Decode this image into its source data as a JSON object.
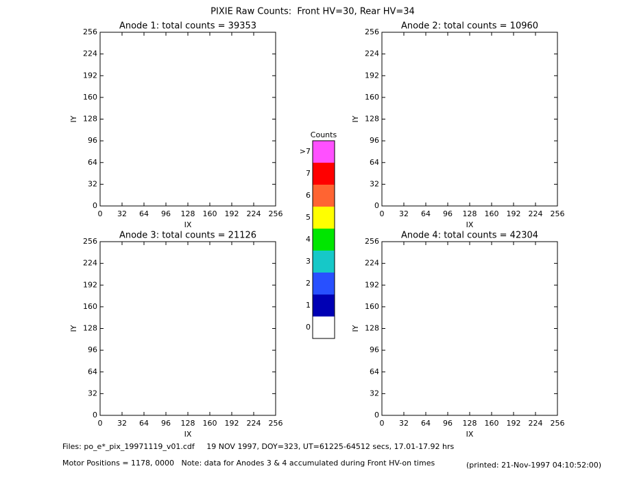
{
  "title": "PIXIE Raw Counts:  Front HV=30, Rear HV=34",
  "chart_data": [
    {
      "type": "heatmap",
      "title": "Anode 1: total counts = 39353",
      "xlabel": "IX",
      "ylabel": "IY",
      "xlim": [
        0,
        256
      ],
      "ylim": [
        0,
        256
      ],
      "xticks": [
        0,
        32,
        64,
        96,
        128,
        160,
        192,
        224,
        256
      ],
      "yticks": [
        0,
        32,
        64,
        96,
        128,
        160,
        192,
        224,
        256
      ]
    },
    {
      "type": "heatmap",
      "title": "Anode 2: total counts = 10960",
      "xlabel": "IX",
      "ylabel": "IY",
      "xlim": [
        0,
        256
      ],
      "ylim": [
        0,
        256
      ],
      "xticks": [
        0,
        32,
        64,
        96,
        128,
        160,
        192,
        224,
        256
      ],
      "yticks": [
        0,
        32,
        64,
        96,
        128,
        160,
        192,
        224,
        256
      ]
    },
    {
      "type": "heatmap",
      "title": "Anode 3: total counts = 21126",
      "xlabel": "IX",
      "ylabel": "IY",
      "xlim": [
        0,
        256
      ],
      "ylim": [
        0,
        256
      ],
      "xticks": [
        0,
        32,
        64,
        96,
        128,
        160,
        192,
        224,
        256
      ],
      "yticks": [
        0,
        32,
        64,
        96,
        128,
        160,
        192,
        224,
        256
      ]
    },
    {
      "type": "heatmap",
      "title": "Anode 4: total counts = 42304",
      "xlabel": "IX",
      "ylabel": "IY",
      "xlim": [
        0,
        256
      ],
      "ylim": [
        0,
        256
      ],
      "xticks": [
        0,
        32,
        64,
        96,
        128,
        160,
        192,
        224,
        256
      ],
      "yticks": [
        0,
        32,
        64,
        96,
        128,
        160,
        192,
        224,
        256
      ]
    }
  ],
  "colorbar": {
    "title": "Counts",
    "categories": [
      "0",
      "1",
      "2",
      "3",
      "4",
      "5",
      "6",
      "7",
      ">7"
    ],
    "colors": [
      "#ffffff",
      "#0000b4",
      "#2850ff",
      "#16c8c8",
      "#00e600",
      "#ffff00",
      "#ff6432",
      "#ff0000",
      "#ff50ff"
    ]
  },
  "footer": {
    "files": "Files: po_e*_pix_19971119_v01.cdf     19 NOV 1997, DOY=323, UT=61225-64512 secs, 17.01-17.92 hrs",
    "motor": "Motor Positions = 1178, 0000   Note: data for Anodes 3 & 4 accumulated during Front HV-on times",
    "printed": "(printed: 21-Nov-1997 04:10:52:00)"
  }
}
